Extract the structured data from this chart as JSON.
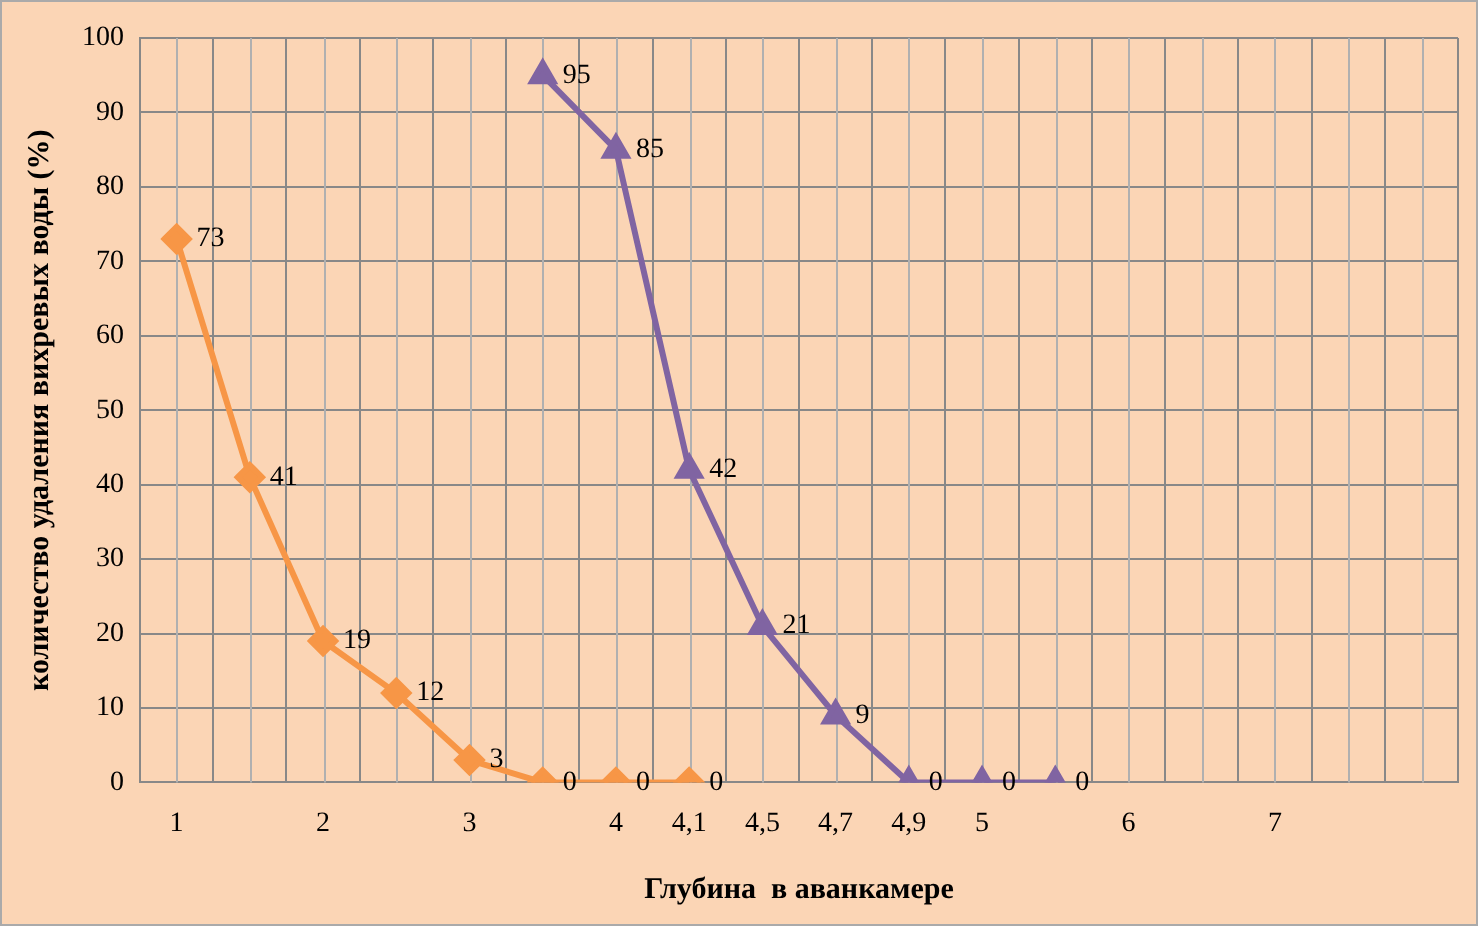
{
  "chart_data": {
    "type": "line",
    "xlabel": "Глубина  в аванкамере",
    "ylabel": "количество удаления вихревых воды (%)",
    "categories": [
      "1",
      null,
      "2",
      null,
      "3",
      null,
      "4",
      "4,1",
      "4,5",
      "4,7",
      "4,9",
      "5",
      null,
      "6",
      null,
      "7",
      null,
      null
    ],
    "series": [
      {
        "color": "#f79646",
        "marker": "diamond",
        "values": [
          73,
          41,
          19,
          12,
          3,
          0,
          0,
          0,
          null,
          null,
          null,
          null,
          null,
          null,
          null,
          null,
          null,
          null
        ]
      },
      {
        "color": "#8064a2",
        "marker": "triangle",
        "values": [
          null,
          null,
          null,
          null,
          null,
          95,
          85,
          42,
          21,
          9,
          0,
          0,
          0,
          null,
          null,
          null,
          null,
          null
        ]
      }
    ],
    "ylim": [
      0,
      100
    ],
    "yticks": [
      0,
      10,
      20,
      30,
      40,
      50,
      60,
      70,
      80,
      90,
      100
    ],
    "grid": true,
    "legend": false,
    "data_labels": true,
    "line_style": "solid"
  }
}
